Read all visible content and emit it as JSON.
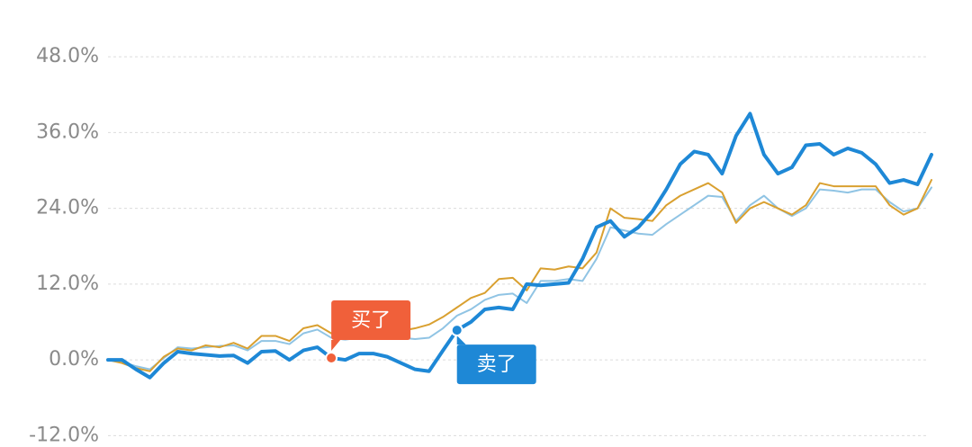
{
  "chart_data": {
    "type": "line",
    "categories": [
      null,
      null,
      null,
      null,
      null,
      null,
      null,
      null,
      null,
      null,
      null,
      null,
      null,
      null,
      null,
      null,
      null,
      null,
      null,
      null,
      null,
      null,
      null,
      null,
      null,
      null,
      null,
      null,
      null,
      null,
      null,
      null,
      null,
      null,
      null,
      null,
      null,
      null,
      null,
      null,
      null,
      null,
      null,
      null,
      null,
      null,
      null,
      null,
      null,
      null,
      null,
      null,
      null,
      null,
      null,
      null,
      null,
      null,
      null,
      null
    ],
    "ylim": [
      -13.8,
      57
    ],
    "yticks": [
      {
        "value": -12,
        "label": "-12.0%"
      },
      {
        "value": 0,
        "label": "0.0%"
      },
      {
        "value": 12,
        "label": "12.0%"
      },
      {
        "value": 24,
        "label": "24.0%"
      },
      {
        "value": 36,
        "label": "36.0%"
      },
      {
        "value": 48,
        "label": "48.0%"
      }
    ],
    "grid": true,
    "series": [
      {
        "color": "#90c4e4",
        "width": 2,
        "values": [
          0,
          -0.3,
          -1,
          -1.5,
          0.3,
          2,
          1.8,
          2,
          2.2,
          2.3,
          1.5,
          3,
          3,
          2.5,
          4.2,
          4.8,
          3.5,
          3.2,
          3.5,
          3.5,
          3.5,
          3.5,
          3.3,
          3.5,
          5,
          7,
          8,
          9.5,
          10.3,
          10.5,
          9,
          12.5,
          12.5,
          12.8,
          12.5,
          16,
          21,
          20.5,
          20,
          19.8,
          21.5,
          23,
          24.5,
          26,
          25.8,
          22,
          24.5,
          26,
          24,
          22.8,
          24,
          27,
          26.8,
          26.5,
          27,
          27,
          25,
          23.5,
          24,
          27.3
        ]
      },
      {
        "color": "#d9a030",
        "width": 2,
        "values": [
          0,
          -0.5,
          -1.3,
          -1.8,
          0.5,
          1.8,
          1.5,
          2.3,
          2,
          2.7,
          1.8,
          3.8,
          3.8,
          3,
          5,
          5.5,
          4.2,
          3.8,
          4.2,
          4.3,
          4.3,
          4.6,
          5,
          5.6,
          6.8,
          8.3,
          9.8,
          10.6,
          12.8,
          13,
          11,
          14.5,
          14.3,
          14.8,
          14.5,
          17,
          24,
          22.5,
          22.3,
          22,
          24.5,
          26,
          27,
          28,
          26.5,
          21.7,
          24,
          25,
          24,
          23,
          24.5,
          28,
          27.5,
          27.5,
          27.5,
          27.5,
          24.5,
          23,
          24,
          28.5
        ]
      },
      {
        "color": "#1e88d6",
        "width": 4,
        "values": [
          0,
          0,
          -1.5,
          -2.8,
          -0.5,
          1.3,
          1,
          0.8,
          0.6,
          0.7,
          -0.5,
          1.3,
          1.4,
          0,
          1.5,
          2,
          0.3,
          0,
          1,
          1,
          0.5,
          -0.5,
          -1.5,
          -1.8,
          1.5,
          4.7,
          6,
          8,
          8.3,
          8,
          12,
          11.8,
          12,
          12.2,
          16,
          21,
          22,
          19.5,
          21,
          23.5,
          27,
          31,
          33,
          32.5,
          29.5,
          35.5,
          39,
          32.5,
          29.5,
          30.5,
          34,
          34.2,
          32.5,
          33.5,
          32.8,
          31,
          28,
          28.5,
          27.8,
          32.5
        ]
      }
    ],
    "annotations": [
      {
        "label": "买了",
        "series": 2,
        "point": 16,
        "color": "#f0603a"
      },
      {
        "label": "卖了",
        "series": 2,
        "point": 25,
        "color": "#1e88d6"
      }
    ]
  }
}
